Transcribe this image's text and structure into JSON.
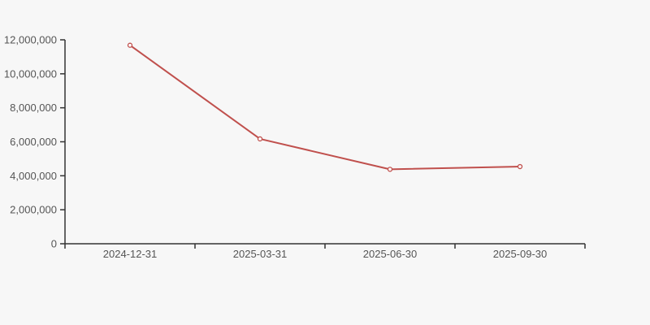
{
  "chart_data": {
    "type": "line",
    "title": "",
    "xlabel": "",
    "ylabel": "",
    "categories": [
      "2024-12-31",
      "2025-03-31",
      "2025-06-30",
      "2025-09-30"
    ],
    "series": [
      {
        "name": "series-1",
        "values": [
          11680000,
          6170000,
          4380000,
          4540000
        ]
      }
    ],
    "ylim": [
      0,
      12000000
    ],
    "y_ticks": [
      0,
      2000000,
      4000000,
      6000000,
      8000000,
      10000000,
      12000000
    ],
    "y_tick_labels": [
      "0",
      "2,000,000",
      "4,000,000",
      "6,000,000",
      "8,000,000",
      "10,000,000",
      "12,000,000"
    ],
    "grid": false,
    "legend_position": "none",
    "marker": "hollow-circle",
    "colors": {
      "line": "#c0504d",
      "marker_fill": "#ffffff",
      "axis": "#333333",
      "tick_label": "#555555",
      "background": "#f7f7f7"
    }
  }
}
